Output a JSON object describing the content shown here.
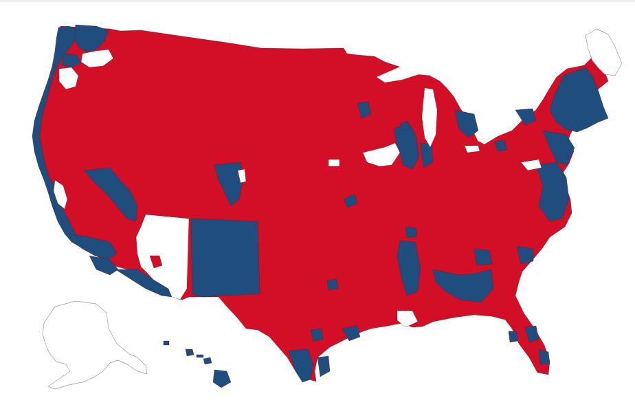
{
  "map": {
    "colors": {
      "republican": "#d20f26",
      "democrat": "#1f4e7e",
      "undecided": "#ffffff",
      "border": "#5a1a22",
      "outline": "#9a9a9a"
    },
    "regions": [
      {
        "name": "contiguous-us",
        "party": "republican"
      },
      {
        "name": "alaska",
        "party": "undecided"
      },
      {
        "name": "hawaii",
        "party": "democrat"
      }
    ]
  }
}
